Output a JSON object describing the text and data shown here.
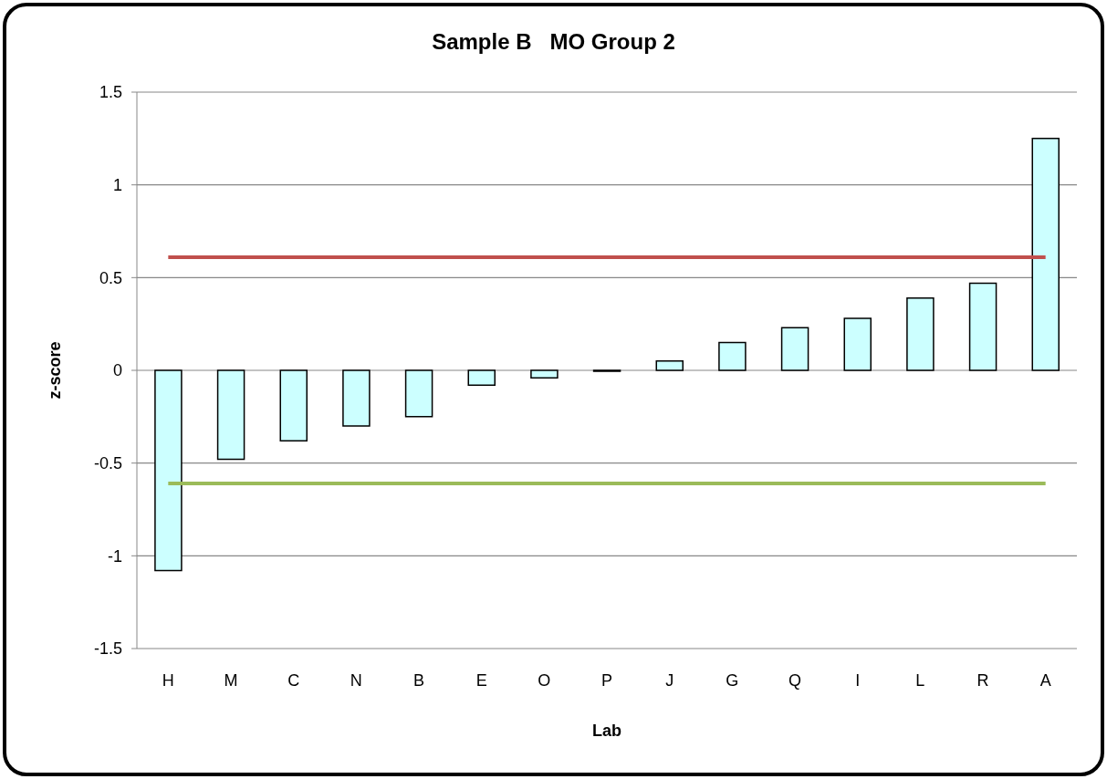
{
  "chart_data": {
    "type": "bar",
    "title": "Sample B   MO Group 2",
    "xlabel": "Lab",
    "ylabel": "z-score",
    "categories": [
      "H",
      "M",
      "C",
      "N",
      "B",
      "E",
      "O",
      "P",
      "J",
      "G",
      "Q",
      "I",
      "L",
      "R",
      "A"
    ],
    "values": [
      -1.08,
      -0.48,
      -0.38,
      -0.3,
      -0.25,
      -0.08,
      -0.04,
      -0.005,
      0.05,
      0.15,
      0.23,
      0.28,
      0.39,
      0.47,
      1.25
    ],
    "color": "#ccffff",
    "ylim": [
      -1.5,
      1.5
    ],
    "yticks": [
      -1.5,
      -1,
      -0.5,
      0,
      0.5,
      1,
      1.5
    ],
    "grid": "y",
    "ref_lines": [
      {
        "axis": "y",
        "value": 0.61,
        "color": "#c0504d"
      },
      {
        "axis": "y",
        "value": -0.61,
        "color": "#9bbb59"
      }
    ]
  }
}
